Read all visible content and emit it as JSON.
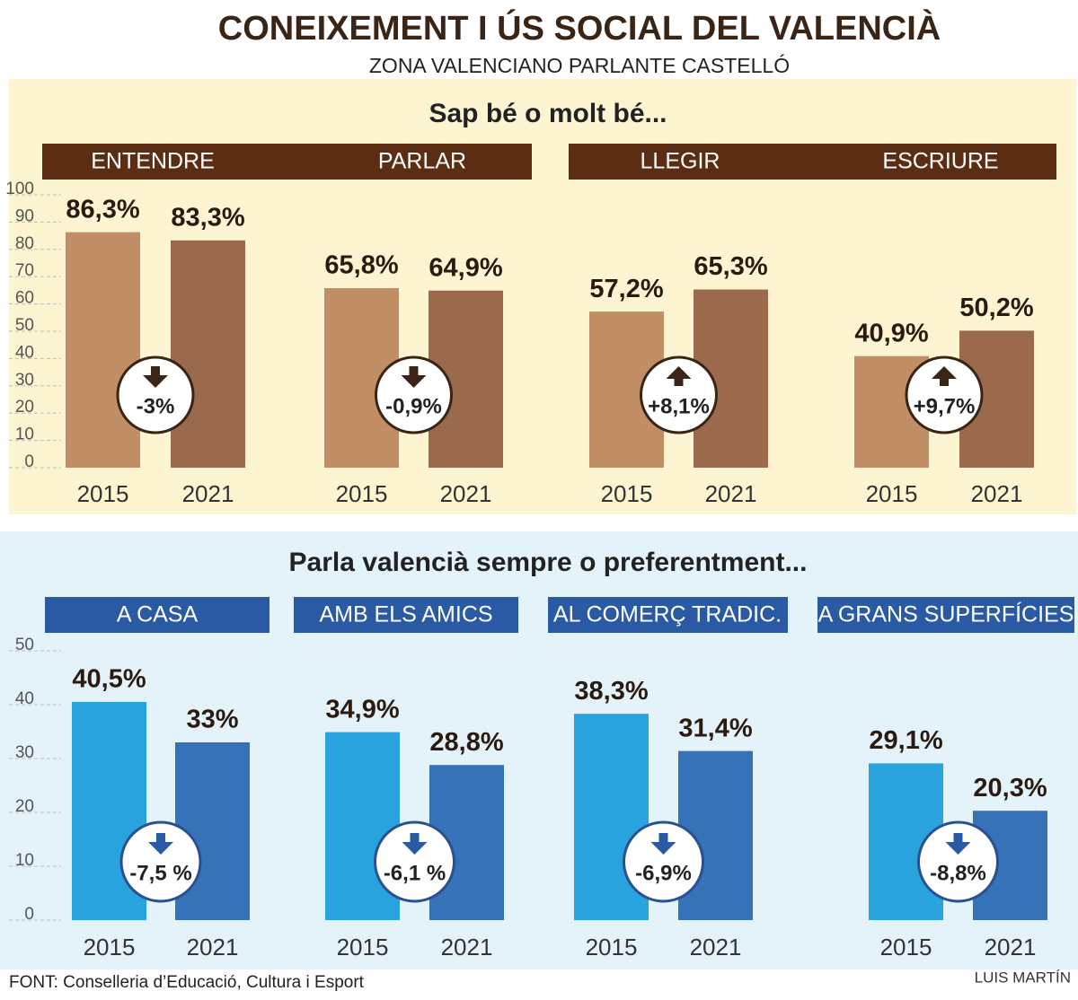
{
  "header": {
    "title": "CONEIXEMENT I ÚS SOCIAL DEL VALENCIÀ",
    "subtitle": "ZONA VALENCIANO PARLANTE CASTELLÓ"
  },
  "chart_data": [
    {
      "type": "bar",
      "title": "Sap bé o molt bé...",
      "ylim": [
        0,
        100
      ],
      "yticks": [
        0,
        10,
        20,
        30,
        40,
        50,
        60,
        70,
        80,
        90,
        100
      ],
      "grid": true,
      "colors": [
        "#c28e66",
        "#9b6a4c"
      ],
      "panels": [
        {
          "title": "ENTENDRE",
          "categories": [
            "2015",
            "2021"
          ],
          "values": [
            86.3,
            83.3
          ],
          "value_labels": [
            "86,3%",
            "83,3%"
          ],
          "change": -3,
          "change_label": "-3%"
        },
        {
          "title": "PARLAR",
          "categories": [
            "2015",
            "2021"
          ],
          "values": [
            65.8,
            64.9
          ],
          "value_labels": [
            "65,8%",
            "64,9%"
          ],
          "change": -0.9,
          "change_label": "-0,9%"
        },
        {
          "title": "LLEGIR",
          "categories": [
            "2015",
            "2021"
          ],
          "values": [
            57.2,
            65.3
          ],
          "value_labels": [
            "57,2%",
            "65,3%"
          ],
          "change": 8.1,
          "change_label": "+8,1%"
        },
        {
          "title": "ESCRIURE",
          "categories": [
            "2015",
            "2021"
          ],
          "values": [
            40.9,
            50.2
          ],
          "value_labels": [
            "40,9%",
            "50,2%"
          ],
          "change": 9.7,
          "change_label": "+9,7%"
        }
      ]
    },
    {
      "type": "bar",
      "title": "Parla valencià sempre o preferentment...",
      "ylim": [
        0,
        50
      ],
      "yticks": [
        0,
        10,
        20,
        30,
        40,
        50
      ],
      "grid": true,
      "colors": [
        "#29a3dd",
        "#3572b8"
      ],
      "panels": [
        {
          "title": "A CASA",
          "categories": [
            "2015",
            "2021"
          ],
          "values": [
            40.5,
            33
          ],
          "value_labels": [
            "40,5%",
            "33%"
          ],
          "change": -7.5,
          "change_label": "-7,5 %"
        },
        {
          "title": "AMB ELS AMICS",
          "categories": [
            "2015",
            "2021"
          ],
          "values": [
            34.9,
            28.8
          ],
          "value_labels": [
            "34,9%",
            "28,8%"
          ],
          "change": -6.1,
          "change_label": "-6,1 %"
        },
        {
          "title": "AL COMERÇ TRADIC.",
          "categories": [
            "2015",
            "2021"
          ],
          "values": [
            38.3,
            31.4
          ],
          "value_labels": [
            "38,3%",
            "31,4%"
          ],
          "change": -6.9,
          "change_label": "-6,9%"
        },
        {
          "title": "A GRANS SUPERFÍCIES",
          "categories": [
            "2015",
            "2021"
          ],
          "values": [
            29.1,
            20.3
          ],
          "value_labels": [
            "29,1%",
            "20,3%"
          ],
          "change": -8.8,
          "change_label": "-8,8%"
        }
      ]
    }
  ],
  "footer": {
    "source": "FONT: Conselleria d’Educació, Cultura i Esport",
    "author": "LUIS MARTÍN"
  }
}
